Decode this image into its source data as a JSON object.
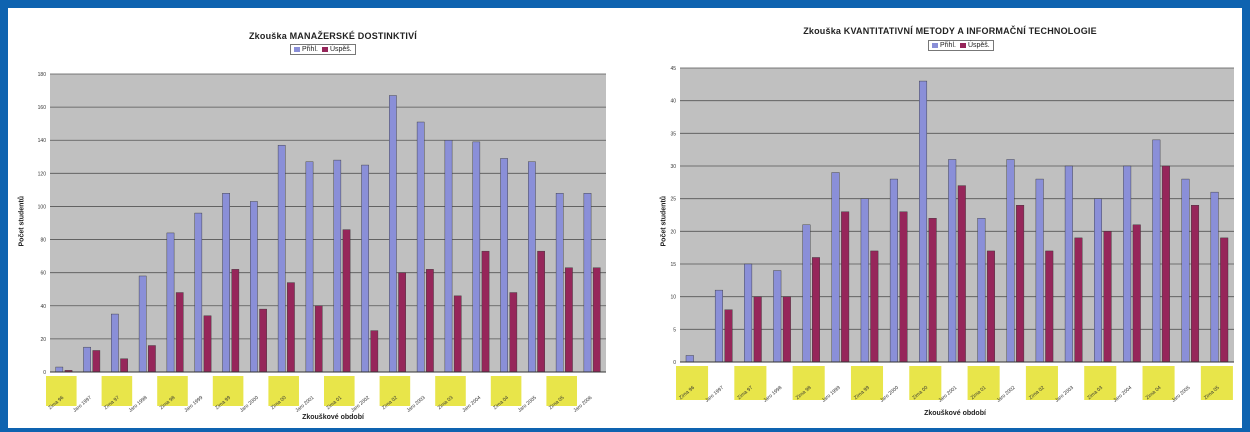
{
  "colors": {
    "frame": "#0e63b0",
    "plot_bg": "#c0c0c0",
    "series_a": "#8a8fd8",
    "series_b": "#96265a",
    "tick_band": "#e8e54a"
  },
  "charts": [
    {
      "title": "Zkouška MANAŽERSKÉ DOSTINKTIVÍ",
      "ylabel": "Počet studentů",
      "xlabel": "Zkouškové období",
      "legend": [
        "Přihl.",
        "Úspěš."
      ]
    },
    {
      "title": "Zkouška KVANTITATIVNÍ METODY A INFORMAČNÍ TECHNOLOGIE",
      "ylabel": "Počet studentů",
      "xlabel": "Zkouškové období",
      "legend": [
        "Přihl.",
        "Úspěš."
      ]
    }
  ],
  "chart_data": [
    {
      "type": "bar",
      "title": "Zkouška MANAŽERSKÉ DOSTINKTIVÍ",
      "ylabel": "Počet studentů",
      "xlabel": "Zkouškové období",
      "ylim": [
        0,
        180
      ],
      "yticks": [
        0,
        20,
        40,
        60,
        80,
        100,
        120,
        140,
        160,
        180
      ],
      "grid": true,
      "legend_position": "top",
      "categories": [
        "Zima 96",
        "Jaro 1997",
        "Zima 97",
        "Jaro 1998",
        "Zima 98",
        "Jaro 1999",
        "Zima 99",
        "Jaro 2000",
        "Zima 00",
        "Jaro 2001",
        "Zima 01",
        "Jaro 2002",
        "Zima 02",
        "Jaro 2003",
        "Zima 03",
        "Jaro 2004",
        "Zima 04",
        "Jaro 2005",
        "Zima 05",
        "Jaro 2006"
      ],
      "tick_labels": [
        "Zima 96",
        "Jaro 1997",
        "Zima 97",
        "Jaro 1998",
        "Zima 98",
        "Jaro 1999",
        "Zima 99",
        "Jaro 2000",
        "Zima 00",
        "Jaro 2001",
        "Zima 01",
        "Jaro 2002",
        "Zima 02",
        "Jaro 2003",
        "Zima 03",
        "Jaro 2004",
        "Zima 04",
        "Jaro 2005",
        "Zima 05",
        "Jaro 2006"
      ],
      "series": [
        {
          "name": "Přihl.",
          "values": [
            3,
            15,
            35,
            58,
            84,
            96,
            108,
            103,
            137,
            127,
            128,
            125,
            167,
            151,
            140,
            139,
            129,
            127,
            108,
            108
          ]
        },
        {
          "name": "Úspěš.",
          "values": [
            1,
            13,
            8,
            16,
            48,
            34,
            62,
            38,
            54,
            40,
            86,
            25,
            60,
            62,
            46,
            73,
            48,
            73,
            63,
            63
          ]
        }
      ]
    },
    {
      "type": "bar",
      "title": "Zkouška KVANTITATIVNÍ METODY A INFORMAČNÍ TECHNOLOGIE",
      "ylabel": "Počet studentů",
      "xlabel": "Zkouškové období",
      "ylim": [
        0,
        45
      ],
      "yticks": [
        0,
        5,
        10,
        15,
        20,
        25,
        30,
        35,
        40,
        45
      ],
      "grid": true,
      "legend_position": "top",
      "categories": [
        "Zima 96",
        "Jaro 1997",
        "Zima 97",
        "Jaro 1998",
        "Zima 98",
        "Jaro 1999",
        "Zima 99",
        "Jaro 2000",
        "Zima 00",
        "Jaro 2001",
        "Zima 01",
        "Jaro 2002",
        "Zima 02",
        "Jaro 2003",
        "Zima 03",
        "Jaro 2004",
        "Zima 04",
        "Jaro 2005",
        "Zima 05"
      ],
      "tick_labels": [
        "Zima 96",
        "Jaro 1997",
        "Zima 97",
        "Jaro 1998",
        "Zima 98",
        "Jaro 1999",
        "Zima 99",
        "Jaro 2000",
        "Zima 00",
        "Jaro 2001",
        "Zima 01",
        "Jaro 2002",
        "Zima 02",
        "Jaro 2003",
        "Zima 03",
        "Jaro 2004",
        "Zima 04",
        "Jaro 2005",
        "Zima 05"
      ],
      "series": [
        {
          "name": "Přihl.",
          "values": [
            1,
            11,
            15,
            14,
            21,
            29,
            25,
            28,
            43,
            31,
            22,
            31,
            28,
            30,
            25,
            30,
            34,
            28,
            26
          ]
        },
        {
          "name": "Úspěš.",
          "values": [
            0,
            8,
            10,
            10,
            16,
            23,
            17,
            23,
            22,
            27,
            17,
            24,
            17,
            19,
            20,
            21,
            30,
            24,
            19
          ]
        }
      ]
    }
  ]
}
